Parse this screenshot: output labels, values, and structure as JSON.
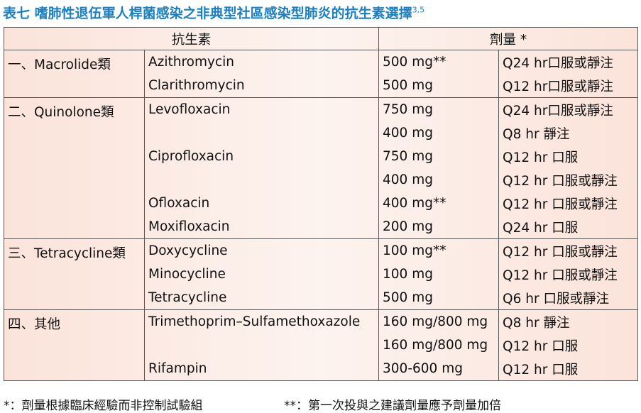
{
  "title": {
    "text": "表七 嗜肺性退伍軍人桿菌感染之非典型社區感染型肺炎的抗生素選擇",
    "superscript": "3,5"
  },
  "table": {
    "header": [
      "抗生素",
      "劑量 *"
    ],
    "groups": [
      {
        "name": "一、Macrolide類",
        "rows": [
          [
            "Azithromycin",
            "500 mg**",
            "Q24 hr口服或靜注"
          ],
          [
            "Clarithromycin",
            "500 mg",
            "Q12 hr口服或靜注"
          ]
        ]
      },
      {
        "name": "二、Quinolone類",
        "rows": [
          [
            "Levofloxacin",
            "750 mg",
            "Q24 hr口服或靜注"
          ],
          [
            null,
            "400 mg",
            "Q8 hr  靜注"
          ],
          [
            "Ciprofloxacin",
            "750 mg",
            "Q12 hr 口服"
          ],
          [
            null,
            "400 mg",
            "Q12 hr 口服或靜注"
          ],
          [
            "Ofloxacin",
            "400 mg**",
            "Q12 hr 口服或靜注"
          ],
          [
            "Moxifloxacin",
            "200 mg",
            "Q24 hr 口服"
          ]
        ]
      },
      {
        "name": "三、Tetracycline類",
        "rows": [
          [
            "Doxycycline",
            "100 mg**",
            "Q12 hr 口服或靜注"
          ],
          [
            "Minocycline",
            "100 mg",
            "Q12 hr 口服或靜注"
          ],
          [
            "Tetracycline",
            "500 mg",
            "Q6 hr  口服或靜注"
          ]
        ]
      },
      {
        "name": "四、其他",
        "rows": [
          [
            "Trimethoprim–Sulfamethoxazole",
            "160 mg/800 mg",
            "Q8 hr  靜注"
          ],
          [
            null,
            "160 mg/800 mg",
            "Q12 hr 口服"
          ],
          [
            "Rifampin",
            "300-600 mg",
            "Q12 hr 口服"
          ]
        ]
      }
    ]
  },
  "footnotes": [
    "*：劑量根據臨床經驗而非控制試驗組",
    "**：第一次投與之建議劑量應予劑量加倍"
  ]
}
